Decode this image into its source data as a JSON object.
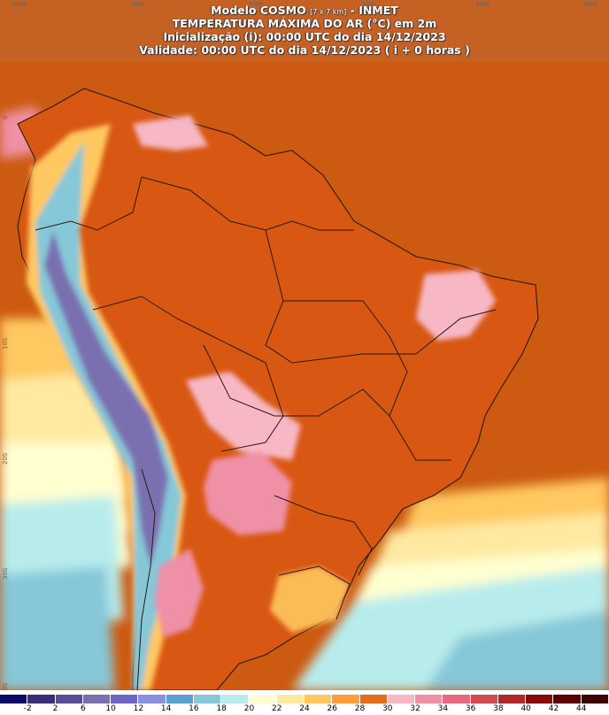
{
  "header": {
    "line1_a": "Modelo COSMO",
    "line1_b": "[7 x 7 km]",
    "line1_c": "- INMET",
    "line2": "TEMPERATURA MÁXIMA DO AR (°C) em 2m",
    "line3": "Inicialização (i): 00:00 UTC do dia 14/12/2023",
    "line4": "Validade: 00:00 UTC do dia 14/12/2023 ( i + 0 horas )"
  },
  "lon_labels": [
    "80W",
    "70W",
    "60W",
    "50W",
    "40W",
    "30W"
  ],
  "lat_labels": [
    "0",
    "10S",
    "20S",
    "30S",
    "40S"
  ],
  "legend": {
    "labels": [
      "-2",
      "2",
      "6",
      "10",
      "12",
      "14",
      "16",
      "18",
      "20",
      "22",
      "24",
      "26",
      "28",
      "30",
      "32",
      "34",
      "36",
      "38",
      "40",
      "42",
      "44"
    ],
    "colors": [
      "#0a0a6a",
      "#3a2d7a",
      "#5b4d95",
      "#7a6fb0",
      "#6b66c8",
      "#8a90e0",
      "#5aa0d0",
      "#86c7d8",
      "#b8ecec",
      "#ffffd0",
      "#ffe9a0",
      "#ffc860",
      "#ff9d3a",
      "#e46a1c",
      "#f7b7c4",
      "#f090a6",
      "#e8687c",
      "#d04a50",
      "#b02828",
      "#8a0a0a",
      "#5e0000",
      "#3e0000"
    ]
  },
  "colors": {
    "ocean_warm": "#cc5a10",
    "land_hot": "#d85712",
    "pink": "#f7b7c4",
    "pink_dark": "#f090a6",
    "border": "#2a1a10"
  }
}
